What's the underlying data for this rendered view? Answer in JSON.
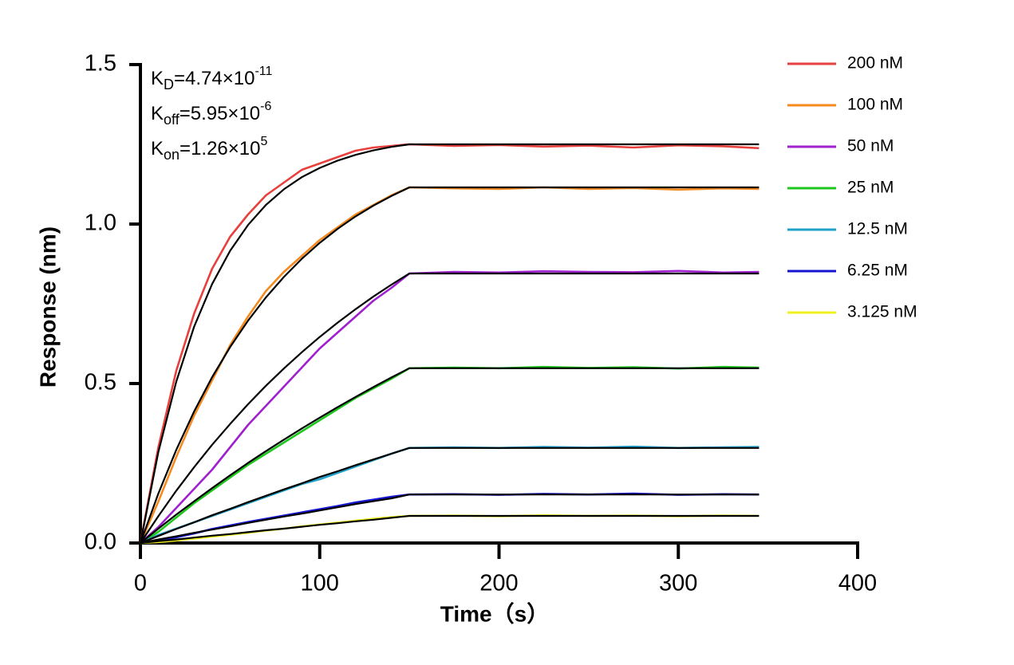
{
  "chart_data": {
    "type": "line",
    "xlabel": "Time（s）",
    "ylabel": "Response (nm)",
    "xlim": [
      0,
      400
    ],
    "ylim": [
      0,
      1.5
    ],
    "xticks": [
      0,
      100,
      200,
      300,
      400
    ],
    "yticks": [
      {
        "value": 0,
        "label": "0.0"
      },
      {
        "value": 0.5,
        "label": "0.5"
      },
      {
        "value": 1,
        "label": "1.0"
      },
      {
        "value": 1.5,
        "label": "1.5"
      }
    ],
    "grid": false,
    "legend": "right",
    "annotations": [
      {
        "text": "K",
        "sub": "D",
        "after": "=4.74×10",
        "sup": "-11"
      },
      {
        "text": "K",
        "sub": "off",
        "after": "=5.95×10",
        "sup": "-6"
      },
      {
        "text": "K",
        "sub": "on",
        "after": "=1.26×10",
        "sup": "5"
      }
    ],
    "x": [
      0,
      10,
      20,
      30,
      40,
      50,
      60,
      70,
      80,
      90,
      100,
      110,
      120,
      130,
      140,
      150,
      175,
      200,
      225,
      250,
      275,
      300,
      325,
      345
    ],
    "series": [
      {
        "name": "200 nM",
        "color": "#e8403c",
        "values": [
          0,
          0.3,
          0.54,
          0.72,
          0.86,
          0.96,
          1.03,
          1.09,
          1.13,
          1.17,
          1.19,
          1.21,
          1.23,
          1.24,
          1.245,
          1.25,
          1.245,
          1.248,
          1.243,
          1.246,
          1.24,
          1.247,
          1.244,
          1.238
        ]
      },
      {
        "name": "100 nM",
        "color": "#f58a1f",
        "values": [
          0,
          0.13,
          0.27,
          0.4,
          0.51,
          0.62,
          0.71,
          0.79,
          0.85,
          0.9,
          0.95,
          0.99,
          1.03,
          1.06,
          1.09,
          1.115,
          1.112,
          1.11,
          1.115,
          1.11,
          1.113,
          1.108,
          1.112,
          1.11
        ]
      },
      {
        "name": "50 nM",
        "color": "#a020d0",
        "values": [
          0,
          0.05,
          0.11,
          0.17,
          0.23,
          0.3,
          0.37,
          0.43,
          0.49,
          0.55,
          0.61,
          0.66,
          0.71,
          0.76,
          0.8,
          0.845,
          0.85,
          0.848,
          0.852,
          0.85,
          0.849,
          0.853,
          0.848,
          0.85
        ]
      },
      {
        "name": "25 nM",
        "color": "#1ec81e",
        "values": [
          0,
          0.035,
          0.08,
          0.125,
          0.165,
          0.205,
          0.245,
          0.28,
          0.315,
          0.35,
          0.385,
          0.42,
          0.455,
          0.485,
          0.515,
          0.548,
          0.55,
          0.548,
          0.552,
          0.549,
          0.551,
          0.547,
          0.552,
          0.55
        ]
      },
      {
        "name": "12.5 nM",
        "color": "#1ea0c8",
        "values": [
          0,
          0.025,
          0.045,
          0.065,
          0.085,
          0.105,
          0.125,
          0.145,
          0.165,
          0.185,
          0.2,
          0.22,
          0.24,
          0.26,
          0.28,
          0.298,
          0.3,
          0.298,
          0.301,
          0.299,
          0.302,
          0.298,
          0.3,
          0.301
        ]
      },
      {
        "name": "6.25 nM",
        "color": "#1414d2",
        "values": [
          0,
          0.008,
          0.018,
          0.03,
          0.044,
          0.055,
          0.066,
          0.076,
          0.086,
          0.096,
          0.106,
          0.116,
          0.127,
          0.136,
          0.145,
          0.152,
          0.153,
          0.151,
          0.154,
          0.152,
          0.155,
          0.151,
          0.153,
          0.152
        ]
      },
      {
        "name": "3.125 nM",
        "color": "#f0f01e",
        "values": [
          0,
          0.003,
          0.008,
          0.014,
          0.02,
          0.026,
          0.032,
          0.039,
          0.045,
          0.052,
          0.058,
          0.064,
          0.07,
          0.076,
          0.081,
          0.085,
          0.086,
          0.084,
          0.087,
          0.085,
          0.086,
          0.084,
          0.086,
          0.085
        ]
      },
      {
        "color": "#000000",
        "values": [
          0,
          0.285,
          0.506,
          0.679,
          0.812,
          0.916,
          0.997,
          1.06,
          1.109,
          1.147,
          1.176,
          1.199,
          1.217,
          1.231,
          1.242,
          1.25,
          1.25,
          1.25,
          1.25,
          1.25,
          1.25,
          1.25,
          1.25,
          1.25
        ]
      },
      {
        "color": "#000000",
        "values": [
          0,
          0.155,
          0.292,
          0.413,
          0.52,
          0.614,
          0.697,
          0.77,
          0.834,
          0.891,
          0.941,
          0.985,
          1.024,
          1.058,
          1.088,
          1.115,
          1.115,
          1.115,
          1.115,
          1.115,
          1.115,
          1.115,
          1.115,
          1.115
        ]
      },
      {
        "color": "#000000",
        "values": [
          0,
          0.084,
          0.164,
          0.238,
          0.308,
          0.373,
          0.435,
          0.493,
          0.547,
          0.598,
          0.646,
          0.691,
          0.733,
          0.773,
          0.81,
          0.845,
          0.845,
          0.845,
          0.845,
          0.845,
          0.845,
          0.845,
          0.845,
          0.845
        ]
      },
      {
        "color": "#000000",
        "values": [
          0,
          0.045,
          0.089,
          0.131,
          0.172,
          0.212,
          0.251,
          0.288,
          0.324,
          0.359,
          0.393,
          0.426,
          0.458,
          0.489,
          0.519,
          0.548,
          0.548,
          0.548,
          0.548,
          0.548,
          0.548,
          0.548,
          0.548,
          0.548
        ]
      },
      {
        "color": "#000000",
        "values": [
          0,
          0.022,
          0.044,
          0.065,
          0.087,
          0.107,
          0.128,
          0.148,
          0.168,
          0.187,
          0.207,
          0.225,
          0.244,
          0.262,
          0.28,
          0.298,
          0.298,
          0.298,
          0.298,
          0.298,
          0.298,
          0.298,
          0.298,
          0.298
        ]
      },
      {
        "color": "#000000",
        "values": [
          0,
          0.011,
          0.021,
          0.032,
          0.042,
          0.052,
          0.063,
          0.073,
          0.083,
          0.092,
          0.102,
          0.112,
          0.122,
          0.131,
          0.14,
          0.152,
          0.152,
          0.152,
          0.152,
          0.152,
          0.152,
          0.152,
          0.152,
          0.152
        ]
      },
      {
        "color": "#000000",
        "values": [
          0,
          0.006,
          0.011,
          0.017,
          0.023,
          0.028,
          0.034,
          0.04,
          0.045,
          0.051,
          0.057,
          0.062,
          0.068,
          0.073,
          0.079,
          0.085,
          0.085,
          0.085,
          0.085,
          0.085,
          0.085,
          0.085,
          0.085,
          0.085
        ]
      }
    ]
  }
}
